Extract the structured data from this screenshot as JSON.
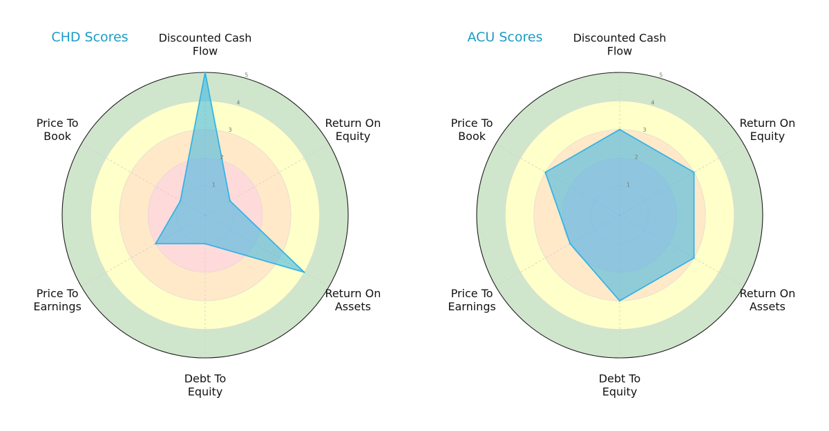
{
  "chart_data": [
    {
      "type": "radar",
      "title": "CHD Scores",
      "axes": [
        "Discounted Cash Flow",
        "Return On Equity",
        "Return On Assets",
        "Debt To Equity",
        "Price To Earnings",
        "Price To Book"
      ],
      "axis_label_lines": [
        [
          "Discounted Cash",
          "Flow"
        ],
        [
          "Return On",
          "Equity"
        ],
        [
          "Return On",
          "Assets"
        ],
        [
          "Debt To",
          "Equity"
        ],
        [
          "Price To",
          "Earnings"
        ],
        [
          "Price To",
          "Book"
        ]
      ],
      "values": [
        5,
        1,
        4,
        1,
        2,
        1
      ],
      "rlim": [
        0,
        5
      ],
      "ticks": [
        "1",
        "2",
        "3",
        "4",
        "5"
      ],
      "bands": [
        {
          "range": [
            0,
            2
          ],
          "color": "#ffdada"
        },
        {
          "range": [
            2,
            3
          ],
          "color": "#ffe9c9"
        },
        {
          "range": [
            3,
            4
          ],
          "color": "#ffffc9"
        },
        {
          "range": [
            4,
            5
          ],
          "color": "#d0e6cc"
        }
      ],
      "series_color": "#34b4e4",
      "grid": true
    },
    {
      "type": "radar",
      "title": "ACU Scores",
      "axes": [
        "Discounted Cash Flow",
        "Return On Equity",
        "Return On Assets",
        "Debt To Equity",
        "Price To Earnings",
        "Price To Book"
      ],
      "axis_label_lines": [
        [
          "Discounted Cash",
          "Flow"
        ],
        [
          "Return On",
          "Equity"
        ],
        [
          "Return On",
          "Assets"
        ],
        [
          "Debt To",
          "Equity"
        ],
        [
          "Price To",
          "Earnings"
        ],
        [
          "Price To",
          "Book"
        ]
      ],
      "values": [
        3,
        3,
        3,
        3,
        2,
        3
      ],
      "rlim": [
        0,
        5
      ],
      "ticks": [
        "1",
        "2",
        "3",
        "4",
        "5"
      ],
      "bands": [
        {
          "range": [
            0,
            2
          ],
          "color": "#ffdada"
        },
        {
          "range": [
            2,
            3
          ],
          "color": "#ffe9c9"
        },
        {
          "range": [
            3,
            4
          ],
          "color": "#ffffc9"
        },
        {
          "range": [
            4,
            5
          ],
          "color": "#d0e6cc"
        }
      ],
      "series_color": "#34b4e4",
      "grid": true
    }
  ]
}
